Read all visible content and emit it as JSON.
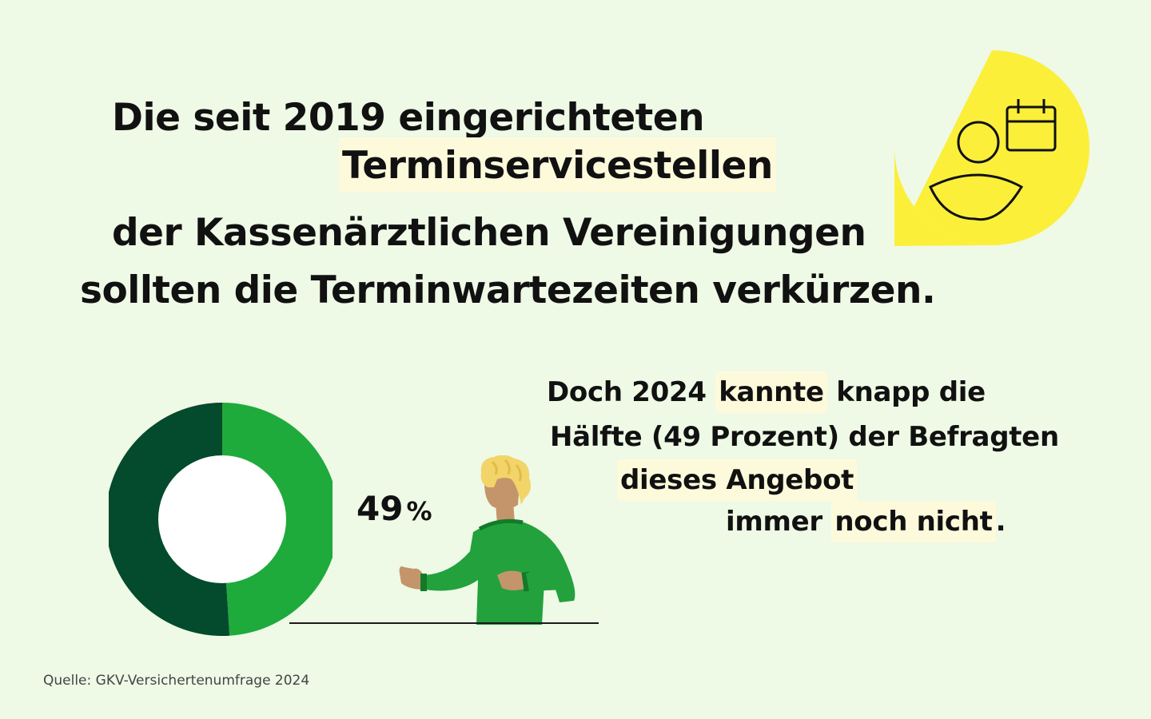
{
  "headline": {
    "line1": "Die seit 2019 eingerichteten",
    "line2_highlight": "Terminservicestellen",
    "line3": "der Kassenärztlichen Vereinigungen",
    "line4": "sollten die Terminwartezeiten verkürzen."
  },
  "body_text": {
    "l1_a": "Doch 2024 ",
    "l1_hl": "kannte",
    "l1_b": " knapp die",
    "l2": "Hälfte (49 Prozent) der Befragten",
    "l3_hl": "dieses Angebot",
    "l4_a": "immer ",
    "l4_hl": "noch nicht",
    "l4_b": "."
  },
  "percent_label": {
    "value": "49",
    "unit": "%"
  },
  "source": "Quelle: GKV-Versichertenumfrage 2024",
  "colors": {
    "background": "#eef9e6",
    "highlight": "#fdfadb",
    "bubble_yellow": "#fbef3a",
    "donut_light_green": "#1faa3c",
    "donut_dark_green": "#044a2d",
    "figure_shirt": "#23a13c",
    "figure_hair": "#f2d469",
    "figure_skin": "#c4956a"
  },
  "icons": [
    "person-calendar-icon",
    "person-figure-illustration"
  ],
  "chart_data": {
    "type": "pie",
    "variant": "donut",
    "values": [
      49,
      51
    ],
    "unit": "%",
    "highlighted_slice": 0,
    "data_label": "49 %"
  }
}
